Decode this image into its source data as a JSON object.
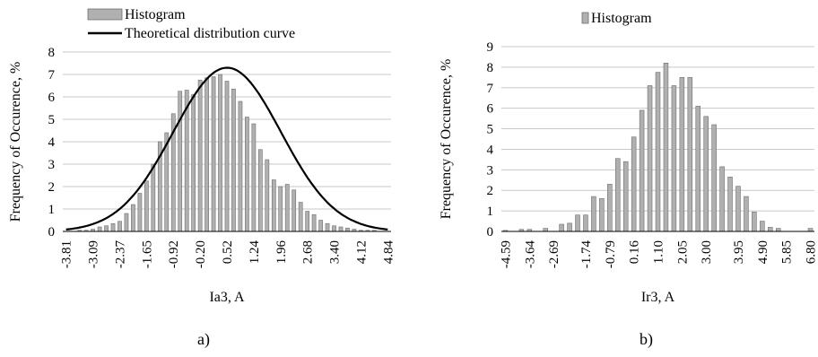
{
  "chart_data": [
    {
      "type": "bar",
      "panel": "a)",
      "xlabel": "Ia3, A",
      "ylabel": "Frequency of Occurence, %",
      "ylim": [
        0,
        8
      ],
      "yticks": [
        0,
        1,
        2,
        3,
        4,
        5,
        6,
        7,
        8
      ],
      "grid": true,
      "legend_position": "top-left",
      "legend": [
        "Histogram",
        "Theoretical distribution curve"
      ],
      "x_tick_labels": [
        "-3.81",
        "-3.09",
        "-2.37",
        "-1.65",
        "-0.92",
        "-0.20",
        "0.52",
        "1.24",
        "1.96",
        "2.68",
        "3.40",
        "4.12",
        "4.84"
      ],
      "series": [
        {
          "name": "Histogram",
          "kind": "bar",
          "color": "#b0b0b0",
          "x": [
            -3.81,
            -3.63,
            -3.45,
            -3.27,
            -3.09,
            -2.91,
            -2.73,
            -2.55,
            -2.37,
            -2.19,
            -2.01,
            -1.83,
            -1.65,
            -1.47,
            -1.28,
            -1.1,
            -0.92,
            -0.74,
            -0.56,
            -0.38,
            -0.2,
            -0.02,
            0.16,
            0.34,
            0.52,
            0.7,
            0.88,
            1.06,
            1.24,
            1.42,
            1.6,
            1.78,
            1.96,
            2.14,
            2.32,
            2.5,
            2.68,
            2.86,
            3.04,
            3.22,
            3.4,
            3.58,
            3.76,
            3.94,
            4.12,
            4.3,
            4.48,
            4.66,
            4.84
          ],
          "values": [
            0.0,
            0.0,
            0.05,
            0.05,
            0.1,
            0.2,
            0.25,
            0.35,
            0.45,
            0.8,
            1.2,
            1.7,
            2.25,
            3.0,
            4.0,
            4.4,
            5.25,
            6.25,
            6.3,
            6.1,
            6.75,
            6.85,
            6.9,
            7.0,
            6.7,
            6.35,
            5.8,
            5.1,
            4.8,
            3.65,
            3.2,
            2.3,
            2.0,
            2.1,
            1.85,
            1.3,
            0.9,
            0.75,
            0.5,
            0.35,
            0.25,
            0.2,
            0.15,
            0.1,
            0.05,
            0.05,
            0.05,
            0.0,
            0.0
          ]
        },
        {
          "name": "Theoretical distribution curve",
          "kind": "line",
          "color": "#000000",
          "mean": 0.52,
          "sd": 1.45,
          "peak": 7.3
        }
      ]
    },
    {
      "type": "bar",
      "panel": "b)",
      "xlabel": "Ir3, A",
      "ylabel": "Frequency of Occurence, %",
      "ylim": [
        0,
        9
      ],
      "yticks": [
        0,
        1,
        2,
        3,
        4,
        5,
        6,
        7,
        8,
        9
      ],
      "grid": true,
      "legend_position": "top-center",
      "legend": [
        "Histogram"
      ],
      "x_tick_labels": [
        "-4.59",
        "-3.64",
        "-2.69",
        "-1.74",
        "-0.79",
        "0.16",
        "1.10",
        "2.05",
        "3.00",
        "3.95",
        "4.90",
        "5.85",
        "6.80"
      ],
      "series": [
        {
          "name": "Histogram",
          "kind": "bar",
          "color": "#b0b0b0",
          "values": [
            0.05,
            0.0,
            0.1,
            0.1,
            0.0,
            0.15,
            0.0,
            0.35,
            0.4,
            0.8,
            0.8,
            1.7,
            1.6,
            2.3,
            3.55,
            3.4,
            4.6,
            5.9,
            7.1,
            7.75,
            8.2,
            7.1,
            7.5,
            7.5,
            6.1,
            5.6,
            5.2,
            3.15,
            2.65,
            2.2,
            1.7,
            0.95,
            0.5,
            0.2,
            0.15,
            0.0,
            0.0,
            0.0,
            0.15
          ]
        }
      ]
    }
  ],
  "panel_labels": [
    "a)",
    "b)"
  ]
}
